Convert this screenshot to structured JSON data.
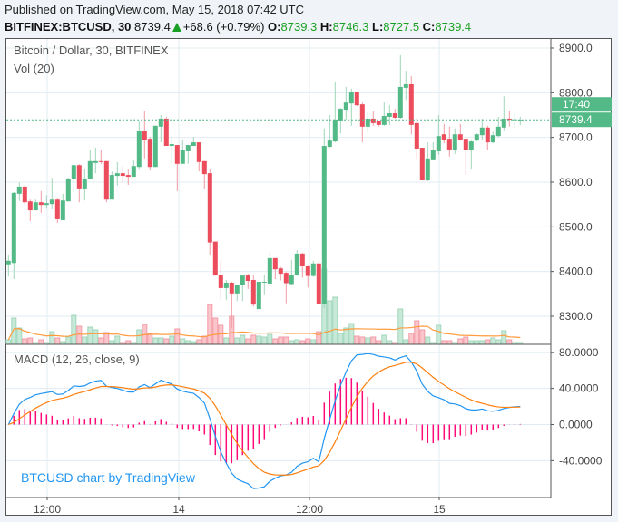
{
  "header": {
    "published": "Published on TradingView.com, May 15, 2018 07:42 UTC",
    "symbol": "BITFINEX:BTCUSD, 30",
    "last": "8739.4",
    "change": "+68.6 (+0.79%)",
    "o_label": "O:",
    "o": "8739.3",
    "h_label": "H:",
    "h": "8746.3",
    "l_label": "L:",
    "l": "8727.5",
    "c_label": "C:",
    "c": "8739.4"
  },
  "legend": {
    "main": "Bitcoin / Dollar, 30, BITFINEX",
    "vol": "Vol (20)",
    "macd": "MACD (12, 26, close, 9)"
  },
  "watermark": "BTCUSD chart by TradingView",
  "price_tag": {
    "price": "8739.4",
    "countdown": "17:40"
  },
  "colors": {
    "up": "#53b987",
    "down": "#eb4d5c",
    "vol_up": "#c8e9d8",
    "vol_down": "#fbc6cb",
    "vol_ma": "#ff9b3d",
    "macd": "#2196f3",
    "signal": "#ff7f0e",
    "histogram": "#ff0a78",
    "grid": "#e1ecf2"
  },
  "chart_data": [
    {
      "type": "candlestick",
      "title": "Bitcoin / Dollar, 30, BITFINEX",
      "ylim": [
        8240,
        8920
      ],
      "y_ticks": [
        "8300.0",
        "8400.0",
        "8500.0",
        "8600.0",
        "8700.0",
        "8800.0",
        "8900.0"
      ],
      "x_ticks": [
        "12:00",
        "14",
        "12:00",
        "15"
      ],
      "grid": true,
      "ohlc": [
        [
          8416,
          8438,
          8389,
          8424
        ],
        [
          8419,
          8578,
          8383,
          8576
        ],
        [
          8574,
          8599,
          8558,
          8590
        ],
        [
          8590,
          8594,
          8549,
          8555
        ],
        [
          8557,
          8561,
          8513,
          8537
        ],
        [
          8537,
          8561,
          8537,
          8555
        ],
        [
          8555,
          8580,
          8531,
          8549
        ],
        [
          8549,
          8571,
          8541,
          8553
        ],
        [
          8551,
          8610,
          8539,
          8561
        ],
        [
          8561,
          8563,
          8509,
          8517
        ],
        [
          8515,
          8574,
          8515,
          8559
        ],
        [
          8557,
          8610,
          8557,
          8608
        ],
        [
          8606,
          8640,
          8578,
          8638
        ],
        [
          8638,
          8640,
          8555,
          8586
        ],
        [
          8586,
          8630,
          8559,
          8608
        ],
        [
          8606,
          8671,
          8606,
          8647
        ],
        [
          8643,
          8677,
          8620,
          8647
        ],
        [
          8647,
          8673,
          8641,
          8645
        ],
        [
          8647,
          8647,
          8555,
          8561
        ],
        [
          8561,
          8624,
          8561,
          8616
        ],
        [
          8614,
          8645,
          8592,
          8620
        ],
        [
          8620,
          8636,
          8598,
          8614
        ],
        [
          8616,
          8628,
          8594,
          8612
        ],
        [
          8612,
          8649,
          8612,
          8636
        ],
        [
          8634,
          8736,
          8628,
          8714
        ],
        [
          8714,
          8760,
          8653,
          8695
        ],
        [
          8697,
          8701,
          8626,
          8634
        ],
        [
          8634,
          8726,
          8634,
          8726
        ],
        [
          8724,
          8750,
          8689,
          8742
        ],
        [
          8742,
          8746,
          8681,
          8681
        ],
        [
          8681,
          8705,
          8641,
          8685
        ],
        [
          8683,
          8683,
          8580,
          8641
        ],
        [
          8641,
          8695,
          8641,
          8671
        ],
        [
          8669,
          8683,
          8641,
          8683
        ],
        [
          8681,
          8701,
          8681,
          8689
        ],
        [
          8689,
          8689,
          8624,
          8645
        ],
        [
          8647,
          8647,
          8584,
          8618
        ],
        [
          8620,
          8630,
          8438,
          8465
        ],
        [
          8467,
          8467,
          8391,
          8391
        ],
        [
          8393,
          8425,
          8338,
          8363
        ],
        [
          8363,
          8381,
          8336,
          8375
        ],
        [
          8375,
          8377,
          8273,
          8351
        ],
        [
          8351,
          8371,
          8334,
          8371
        ],
        [
          8369,
          8391,
          8334,
          8391
        ],
        [
          8391,
          8395,
          8361,
          8379
        ],
        [
          8381,
          8391,
          8322,
          8326
        ],
        [
          8316,
          8377,
          8316,
          8377
        ],
        [
          8375,
          8393,
          8349,
          8377
        ],
        [
          8373,
          8444,
          8373,
          8430
        ],
        [
          8430,
          8430,
          8383,
          8405
        ],
        [
          8407,
          8410,
          8380,
          8395
        ],
        [
          8397,
          8400,
          8329,
          8374
        ],
        [
          8372,
          8426,
          8370,
          8393
        ],
        [
          8392,
          8448,
          8390,
          8440
        ],
        [
          8440,
          8442,
          8386,
          8412
        ],
        [
          8413,
          8415,
          8364,
          8390
        ],
        [
          8390,
          8424,
          8388,
          8418
        ],
        [
          8418,
          8424,
          8327,
          8327
        ],
        [
          8327,
          8720,
          8318,
          8681
        ],
        [
          8679,
          8750,
          8677,
          8693
        ],
        [
          8691,
          8825,
          8689,
          8740
        ],
        [
          8738,
          8766,
          8709,
          8764
        ],
        [
          8762,
          8813,
          8740,
          8778
        ],
        [
          8776,
          8809,
          8726,
          8801
        ],
        [
          8801,
          8803,
          8770,
          8772
        ],
        [
          8774,
          8778,
          8689,
          8724
        ],
        [
          8724,
          8756,
          8711,
          8742
        ],
        [
          8742,
          8758,
          8726,
          8732
        ],
        [
          8736,
          8738,
          8724,
          8728
        ],
        [
          8728,
          8780,
          8726,
          8748
        ],
        [
          8746,
          8772,
          8728,
          8754
        ],
        [
          8754,
          8764,
          8742,
          8744
        ],
        [
          8744,
          8884,
          8742,
          8813
        ],
        [
          8811,
          8849,
          8784,
          8819
        ],
        [
          8819,
          8837,
          8707,
          8728
        ],
        [
          8732,
          8744,
          8653,
          8675
        ],
        [
          8677,
          8677,
          8604,
          8604
        ],
        [
          8604,
          8689,
          8602,
          8653
        ],
        [
          8651,
          8689,
          8649,
          8671
        ],
        [
          8669,
          8750,
          8661,
          8703
        ],
        [
          8707,
          8730,
          8687,
          8695
        ],
        [
          8697,
          8724,
          8657,
          8673
        ],
        [
          8673,
          8720,
          8663,
          8707
        ],
        [
          8707,
          8730,
          8693,
          8695
        ],
        [
          8697,
          8697,
          8616,
          8671
        ],
        [
          8671,
          8693,
          8628,
          8691
        ],
        [
          8693,
          8709,
          8691,
          8707
        ],
        [
          8705,
          8742,
          8695,
          8722
        ],
        [
          8722,
          8726,
          8673,
          8689
        ],
        [
          8689,
          8713,
          8687,
          8705
        ],
        [
          8703,
          8746,
          8701,
          8724
        ],
        [
          8722,
          8792,
          8716,
          8742
        ],
        [
          8742,
          8760,
          8724,
          8740
        ],
        [
          8740,
          8754,
          8720,
          8740.5
        ],
        [
          8739.3,
          8746.3,
          8727.5,
          8739.4
        ]
      ],
      "volume": [
        15,
        87,
        54,
        18,
        21,
        6,
        15,
        6,
        42,
        21,
        9,
        24,
        96,
        60,
        24,
        57,
        48,
        21,
        39,
        12,
        27,
        6,
        12,
        6,
        48,
        66,
        36,
        21,
        21,
        18,
        27,
        51,
        18,
        12,
        9,
        15,
        27,
        132,
        87,
        63,
        21,
        93,
        21,
        30,
        18,
        30,
        27,
        24,
        33,
        18,
        24,
        24,
        12,
        15,
        12,
        18,
        15,
        42,
        249,
        144,
        156,
        36,
        54,
        69,
        27,
        24,
        21,
        24,
        12,
        30,
        12,
        6,
        117,
        15,
        36,
        78,
        48,
        24,
        6,
        63,
        12,
        12,
        6,
        18,
        24,
        12,
        12,
        12,
        15,
        21,
        15,
        45,
        15,
        6,
        6
      ],
      "volume_ma_period": 20
    },
    {
      "type": "line",
      "title": "MACD (12, 26, close, 9)",
      "ylim": [
        -80,
        90
      ],
      "y_ticks": [
        "80.0000",
        "40.0000",
        "0.0000",
        "-40.0000"
      ],
      "params": {
        "fast": 12,
        "slow": 26,
        "signal": 9
      }
    }
  ]
}
